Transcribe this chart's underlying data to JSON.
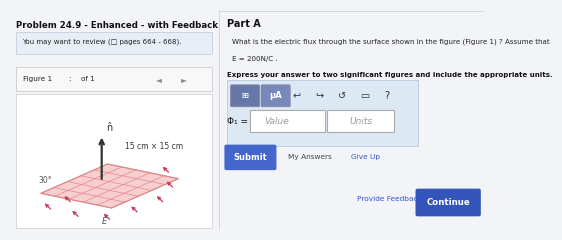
{
  "title": "Problem 24.9 - Enhanced - with Feedback",
  "review_text": "You may want to review (□ pages 664 - 668).",
  "figure_label": "Figure 1",
  "figure_colon": ":",
  "figure_of": "of 1",
  "part_a_title": "Part A",
  "question_line1": "What is the electric flux through the surface shown in the figure (Figure 1) ? Assume that",
  "question_line2": "E = 200N/C .",
  "bold_question": "Express your answer to two significant figures and include the appropriate units.",
  "phi_label": "Φ₁ =",
  "value_placeholder": "Value",
  "units_placeholder": "Units",
  "submit_text": "Submit",
  "my_answers_text": "My Answers",
  "give_up_text": "Give Up",
  "provide_feedback_text": "Provide Feedback",
  "continue_text": "Continue",
  "figure_annotation": "15 cm × 15 cm",
  "angle_label": "30°",
  "normal_label": "n̂",
  "e_label": "E",
  "bg_color": "#f2f4f7",
  "left_panel_bg": "#f2f4f7",
  "right_panel_bg": "#ffffff",
  "review_box_bg": "#e8eef5",
  "review_box_edge": "#c8d4e0",
  "fig_bar_bg": "#f8f8f8",
  "fig_bar_edge": "#cccccc",
  "toolbar_bg": "#dde8f5",
  "toolbar_edge": "#b8c8dc",
  "input_outer_bg": "#eef3f8",
  "input_outer_edge": "#b8c8dc",
  "input_box_bg": "#ffffff",
  "input_box_edge": "#aaaaaa",
  "submit_btn_color": "#4466cc",
  "continue_btn_color": "#3355bb",
  "plane_face": "#f5c0c0",
  "plane_edge": "#cc7777",
  "grid_color": "#e08080",
  "arrow_color": "#cc3355",
  "normal_color": "#333333"
}
